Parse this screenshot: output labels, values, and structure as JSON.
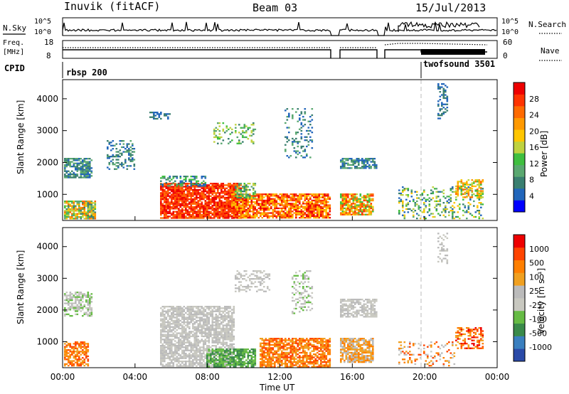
{
  "header": {
    "station": "Inuvik (fitACF)",
    "beam": "Beam 03",
    "date": "15/Jul/2013"
  },
  "strips": {
    "nsky_label": "N.Sky",
    "nsky_top": "10^5",
    "nsky_bottom": "10^0",
    "nsearch_label": "N.Search",
    "nsearch_top": "10^5",
    "nsearch_bottom": "10^0",
    "freq_label_1": "Freq.",
    "freq_label_2": "[MHz]",
    "freq_top": "18",
    "freq_bottom": "8",
    "nave_label": "Nave",
    "nave_top": "60",
    "nave_bottom": "0",
    "cpid_label": "CPID",
    "cpid_1": "rbsp 200",
    "cpid_2": "twofsound 3501"
  },
  "chart_data": [
    {
      "type": "heatmap",
      "name": "power",
      "ylabel": "Slant Range [km]",
      "yticks": [
        "4000",
        "3000",
        "2000",
        "1000"
      ],
      "ylim": [
        180,
        4600
      ],
      "colorbar_label": "Power [dB]",
      "colorbar_ticks": [
        "28",
        "24",
        "20",
        "16",
        "12",
        "8",
        "4"
      ],
      "colors": [
        "#0000ff",
        "#2266bb",
        "#3a7f70",
        "#5aa870",
        "#3fbf3f",
        "#bfd23f",
        "#ffc600",
        "#ff9900",
        "#ff6a00",
        "#ff3300",
        "#ee0000"
      ]
    },
    {
      "type": "heatmap",
      "name": "velocity",
      "ylabel": "Slant Range [km]",
      "yticks": [
        "4000",
        "3000",
        "2000",
        "1000"
      ],
      "ylim": [
        180,
        4600
      ],
      "xlabel": "Time UT",
      "xticks": [
        "00:00",
        "04:00",
        "08:00",
        "12:00",
        "16:00",
        "20:00",
        "00:00"
      ],
      "colorbar_label": "Velocity [m s⁻¹]",
      "colorbar_ticks": [
        "1000",
        "500",
        "100",
        "25",
        "-25",
        "-100",
        "-500",
        "-1000"
      ],
      "colors": [
        "#2a4aa8",
        "#3a7fbf",
        "#3a8a4a",
        "#66bb44",
        "#c8c8c0",
        "#bbbbbb",
        "#f0a020",
        "#ff7f00",
        "#ff4400",
        "#ee0000"
      ]
    }
  ]
}
